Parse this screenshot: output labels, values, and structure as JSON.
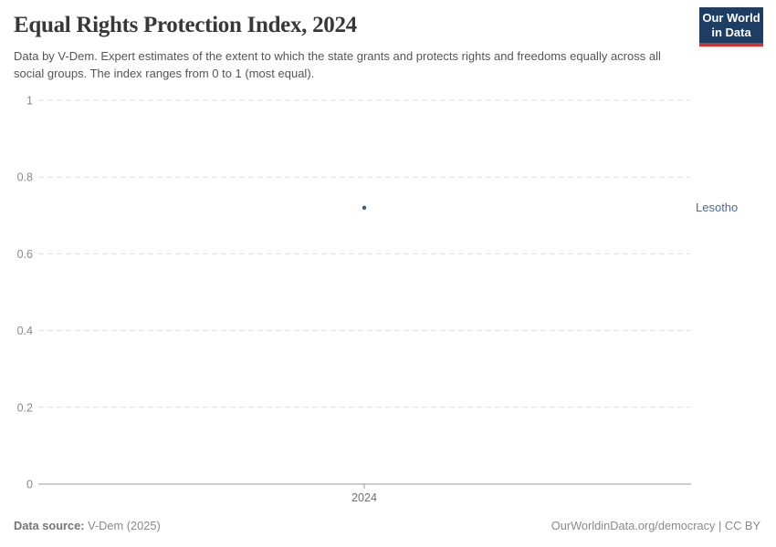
{
  "header": {
    "title": "Equal Rights Protection Index, 2024",
    "subtitle": "Data by V-Dem. Expert estimates of the extent to which the state grants and protects rights and freedoms equally across all social groups. The index ranges from 0 to 1 (most equal).",
    "logo": {
      "line1": "Our World",
      "line2": "in Data",
      "bg_color": "#1d3d63",
      "stripe_color": "#cd3731"
    }
  },
  "chart_data": {
    "type": "scatter",
    "title": "Equal Rights Protection Index, 2024",
    "x": [
      2024
    ],
    "x_ticks": [
      "2024"
    ],
    "series": [
      {
        "name": "Lesotho",
        "values": [
          0.72
        ],
        "color": "#3d5c8f",
        "label_color": "#4c6a9c"
      }
    ],
    "xlabel": "",
    "ylabel": "",
    "ylim": [
      0,
      1
    ],
    "y_ticks": [
      0,
      0.2,
      0.4,
      0.6,
      0.8,
      1
    ],
    "grid": "horizontal-dashed",
    "legend_position": "right-entity-label",
    "axis_color": "#999999",
    "gridline_color": "#dedede",
    "y_tick_label_color": "#8a8a8a",
    "x_tick_label_color": "#6f6f6f"
  },
  "footer": {
    "source_label": "Data source:",
    "source_value": " V-Dem (2025)",
    "credit": "OurWorldinData.org/democracy | CC BY"
  }
}
